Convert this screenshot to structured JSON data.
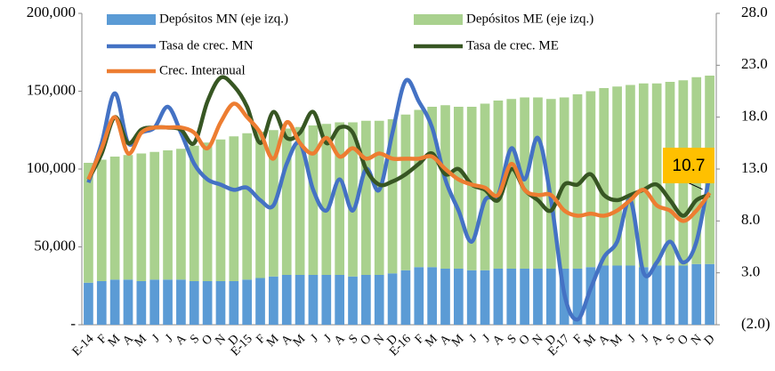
{
  "chart_data": {
    "type": "bar-line",
    "categories": [
      "E-14",
      "F",
      "M",
      "A",
      "M",
      "J",
      "J",
      "A",
      "S",
      "O",
      "N",
      "D",
      "E-15",
      "F",
      "M",
      "A",
      "M",
      "J",
      "J",
      "A",
      "S",
      "O",
      "N",
      "D",
      "E-16",
      "F",
      "M",
      "A",
      "M",
      "J",
      "J",
      "A",
      "S",
      "O",
      "N",
      "D",
      "E-17",
      "F",
      "M",
      "A",
      "M",
      "J",
      "J",
      "A",
      "S",
      "O",
      "N",
      "D"
    ],
    "ylim": [
      0,
      200000
    ],
    "yticks": [
      {
        "value": 0,
        "label": "-"
      },
      {
        "value": 50000,
        "label": "50,000"
      },
      {
        "value": 100000,
        "label": "100,000"
      },
      {
        "value": 150000,
        "label": "150,000"
      },
      {
        "value": 200000,
        "label": "200,000"
      }
    ],
    "y2lim": [
      -2,
      28
    ],
    "y2ticks": [
      {
        "value": -2,
        "label": "(2.0)"
      },
      {
        "value": 3,
        "label": "3.0"
      },
      {
        "value": 8,
        "label": "8.0"
      },
      {
        "value": 13,
        "label": "13.0"
      },
      {
        "value": 18,
        "label": "18.0"
      },
      {
        "value": 23,
        "label": "23.0"
      },
      {
        "value": 28,
        "label": "28.0"
      }
    ],
    "series": [
      {
        "name": "Depósitos MN (eje izq.)",
        "kind": "bar",
        "color": "#5b9bd5",
        "values": [
          27000,
          28000,
          29000,
          29000,
          28000,
          29000,
          29000,
          29000,
          28000,
          28000,
          28000,
          28000,
          29000,
          30000,
          31000,
          32000,
          32000,
          32000,
          32000,
          32000,
          31000,
          32000,
          32000,
          33000,
          35000,
          37000,
          37000,
          36000,
          36000,
          35000,
          35000,
          36000,
          36000,
          36000,
          36000,
          36000,
          36000,
          36000,
          37000,
          38000,
          38000,
          38000,
          37000,
          38000,
          38000,
          38000,
          39000,
          39000
        ]
      },
      {
        "name": "Depósitos ME (eje izq.)",
        "kind": "bar",
        "color": "#a9d18e",
        "values": [
          77000,
          78000,
          79000,
          80000,
          82000,
          82000,
          83000,
          84000,
          87000,
          89000,
          91000,
          93000,
          94000,
          94000,
          94000,
          94000,
          95000,
          96000,
          97000,
          98000,
          99000,
          99000,
          99000,
          99000,
          100000,
          101000,
          103000,
          105000,
          104000,
          105000,
          107000,
          108000,
          109000,
          110000,
          110000,
          109000,
          110000,
          112000,
          113000,
          114000,
          115000,
          116000,
          118000,
          117000,
          118000,
          119000,
          120000,
          121000
        ]
      },
      {
        "name": "Tasa  de  crec. MN",
        "kind": "line",
        "axis": "y2",
        "color": "#4472c4",
        "values": [
          11.7,
          15.5,
          20.3,
          15.5,
          16.5,
          17,
          19,
          16.5,
          13.5,
          12,
          11.5,
          11,
          11.2,
          10,
          9.5,
          13.5,
          15.5,
          11,
          9,
          12,
          9,
          13,
          11,
          16.5,
          21.5,
          19.5,
          17,
          12,
          9,
          6,
          10,
          10.5,
          15,
          12,
          16,
          10,
          1,
          -1.5,
          1.5,
          4.5,
          6,
          10,
          3,
          4,
          6,
          4,
          6,
          12.5
        ]
      },
      {
        "name": "Tasa de crec. ME",
        "kind": "line",
        "axis": "y2",
        "color": "#375623",
        "values": [
          12,
          14.5,
          18,
          15.5,
          16.8,
          17,
          17,
          16.8,
          15.5,
          19.5,
          21.8,
          21,
          19,
          15.5,
          18.5,
          16,
          16.5,
          18.5,
          15.5,
          17,
          16.5,
          13,
          11.5,
          11.8,
          12.5,
          13.5,
          14.5,
          12.5,
          13,
          11.5,
          11,
          10,
          13,
          11,
          10,
          9,
          11.5,
          11.5,
          12.5,
          10.5,
          10,
          10.5,
          11,
          11.5,
          10,
          8.5,
          10,
          10.5
        ]
      },
      {
        "name": "Crec. Interanual",
        "kind": "line",
        "axis": "y2",
        "color": "#ed7d31",
        "label_last": true,
        "values": [
          12,
          15,
          18,
          14.5,
          16.5,
          17,
          17,
          17,
          16.5,
          15,
          17.5,
          19.3,
          18,
          16.5,
          14,
          17.5,
          15.5,
          14.5,
          16,
          14.2,
          15,
          14,
          14.5,
          14,
          14,
          14,
          14.2,
          13,
          12,
          11.5,
          11.2,
          10.5,
          13.5,
          11,
          10.5,
          10.5,
          9,
          8.5,
          8.7,
          8.5,
          9,
          10,
          11,
          9.5,
          9,
          8,
          9,
          10.7
        ]
      }
    ]
  }
}
